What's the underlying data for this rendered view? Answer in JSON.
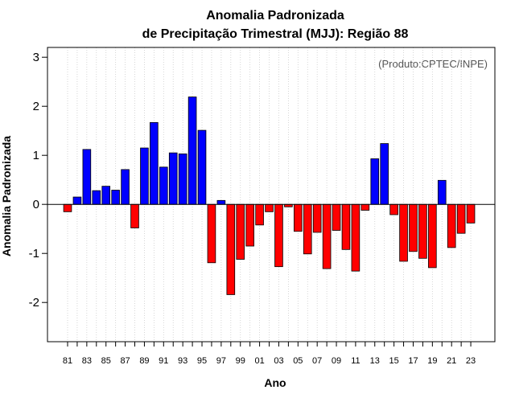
{
  "chart_data": {
    "type": "bar",
    "title": "Anomalia Padronizada",
    "subtitle": "de Precipitação Trimestral (MJJ): Região 88",
    "xlabel": "Ano",
    "ylabel": "Anomalia Padronizada",
    "annotation": "(Produto:CPTEC/INPE)",
    "ylim": [
      -2.8,
      3.2
    ],
    "yticks": [
      "-2",
      "-1",
      "0",
      "1",
      "2",
      "3"
    ],
    "categories": [
      "81",
      "82",
      "83",
      "84",
      "85",
      "86",
      "87",
      "88",
      "89",
      "90",
      "91",
      "92",
      "93",
      "94",
      "95",
      "96",
      "97",
      "98",
      "99",
      "00",
      "01",
      "02",
      "03",
      "04",
      "05",
      "06",
      "07",
      "08",
      "09",
      "10",
      "11",
      "12",
      "13",
      "14",
      "15",
      "16",
      "17",
      "18",
      "19",
      "20",
      "21",
      "22",
      "23"
    ],
    "xtick_labels": [
      "81",
      "83",
      "85",
      "87",
      "89",
      "91",
      "93",
      "95",
      "97",
      "99",
      "01",
      "03",
      "05",
      "07",
      "09",
      "11",
      "13",
      "15",
      "17",
      "19",
      "21",
      "23"
    ],
    "values": [
      -0.15,
      0.15,
      1.12,
      0.28,
      0.37,
      0.29,
      0.71,
      -0.48,
      1.15,
      1.67,
      0.76,
      1.05,
      1.03,
      2.19,
      1.51,
      -1.19,
      0.08,
      -1.84,
      -1.12,
      -0.85,
      -0.42,
      -0.15,
      -1.27,
      -0.05,
      -0.55,
      -1.01,
      -0.57,
      -1.31,
      -0.53,
      -0.92,
      -1.36,
      -0.12,
      0.93,
      1.24,
      -0.21,
      -1.16,
      -0.96,
      -1.1,
      -1.29,
      0.49,
      -0.88,
      -0.59,
      -0.38
    ],
    "colors": {
      "positive": "#0000ff",
      "negative": "#ff0000",
      "grid": "#cccccc",
      "axis": "#000000"
    }
  }
}
